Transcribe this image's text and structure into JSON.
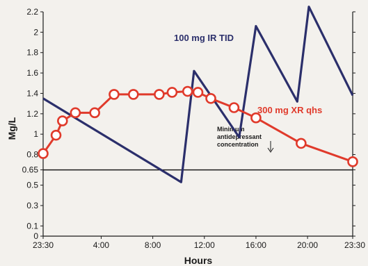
{
  "chart_data": {
    "type": "line",
    "xlabel": "Hours",
    "ylabel": "Mg/L",
    "x_ticks": [
      "23:30",
      "4:00",
      "8:00",
      "12:00",
      "16:00",
      "20:00",
      "23:30"
    ],
    "x_tick_hours": [
      23.5,
      28,
      32,
      36,
      40,
      44,
      47.5
    ],
    "xlim_hours": [
      23.5,
      47.5
    ],
    "y_ticks": [
      0,
      0.1,
      0.3,
      0.5,
      0.65,
      0.8,
      1,
      1.2,
      1.4,
      1.6,
      1.8,
      2,
      2.2
    ],
    "ylim": [
      0,
      2.2
    ],
    "grid": false,
    "threshold": {
      "value": 0.65,
      "label_lines": [
        "Minimum",
        "antidepressant",
        "concentration"
      ]
    },
    "series": [
      {
        "name": "100 mg IR TID",
        "color": "#2b2f6b",
        "markers": false,
        "x_hours": [
          23.5,
          34.2,
          35.2,
          38.7,
          40.0,
          43.2,
          44.1,
          47.5
        ],
        "values": [
          1.35,
          0.53,
          1.62,
          0.97,
          2.06,
          1.32,
          2.25,
          1.38
        ]
      },
      {
        "name": "300 mg XR qhs",
        "color": "#e03a2b",
        "markers": true,
        "x_hours": [
          23.5,
          24.5,
          25.0,
          26.0,
          27.5,
          29.0,
          30.5,
          32.5,
          33.5,
          34.7,
          35.5,
          36.5,
          38.3,
          40.0,
          43.5,
          47.5
        ],
        "values": [
          0.81,
          0.99,
          1.13,
          1.21,
          1.21,
          1.39,
          1.39,
          1.39,
          1.41,
          1.42,
          1.41,
          1.35,
          1.26,
          1.16,
          0.91,
          0.73
        ]
      }
    ]
  }
}
